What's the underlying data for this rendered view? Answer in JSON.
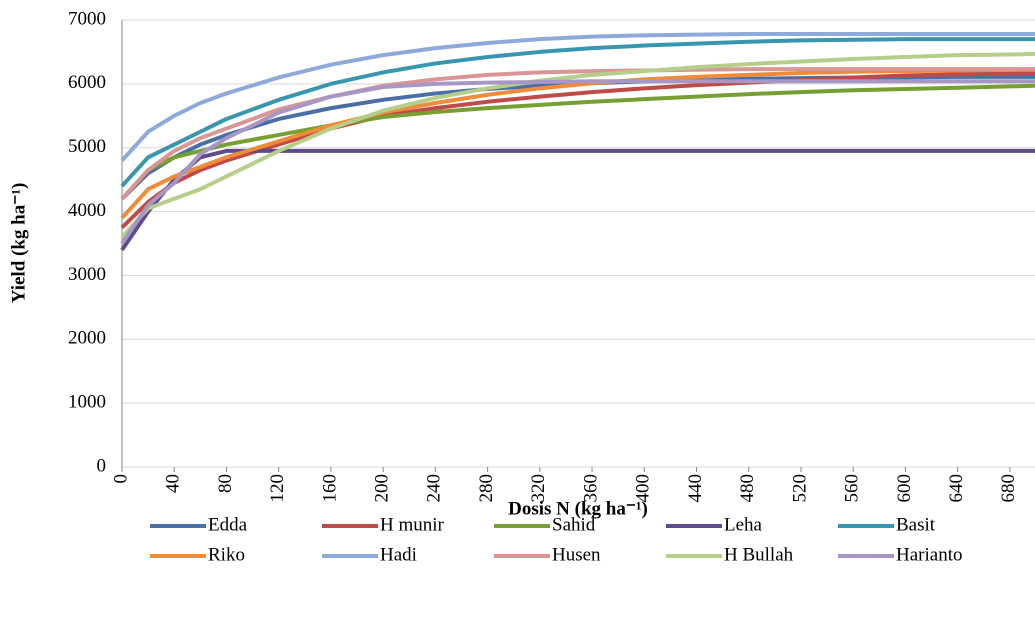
{
  "chart_data": {
    "type": "line",
    "y_label": "Yield (kg ha⁻¹)",
    "x_label": "Dosis N (kg ha⁻¹)",
    "x": [
      0,
      20,
      40,
      60,
      80,
      120,
      160,
      200,
      240,
      280,
      320,
      360,
      400,
      440,
      480,
      520,
      560,
      600,
      640,
      680,
      700
    ],
    "xlim": [
      0,
      700
    ],
    "xticks": [
      0,
      40,
      80,
      120,
      160,
      200,
      240,
      280,
      320,
      360,
      400,
      440,
      480,
      520,
      560,
      600,
      640,
      680
    ],
    "ylim": [
      0,
      7000
    ],
    "yticks": [
      0,
      1000,
      2000,
      3000,
      4000,
      5000,
      6000,
      7000
    ],
    "grid": true,
    "legend": "bottom",
    "series": [
      {
        "name": "Edda",
        "color": "#4a6fa5",
        "values": [
          4200,
          4600,
          4850,
          5050,
          5200,
          5450,
          5620,
          5750,
          5850,
          5920,
          5970,
          6010,
          6040,
          6060,
          6080,
          6090,
          6100,
          6100,
          6110,
          6110,
          6110
        ]
      },
      {
        "name": "H munir",
        "color": "#be4b48",
        "values": [
          3750,
          4150,
          4450,
          4650,
          4800,
          5050,
          5300,
          5500,
          5620,
          5720,
          5800,
          5870,
          5930,
          5980,
          6020,
          6060,
          6100,
          6130,
          6150,
          6160,
          6170
        ]
      },
      {
        "name": "Sahid",
        "color": "#77a033",
        "values": [
          4200,
          4650,
          4850,
          4950,
          5050,
          5200,
          5350,
          5480,
          5560,
          5620,
          5670,
          5720,
          5760,
          5800,
          5840,
          5870,
          5900,
          5920,
          5940,
          5960,
          5970
        ]
      },
      {
        "name": "Leha",
        "color": "#5f4b8b",
        "values": [
          3400,
          4000,
          4500,
          4850,
          4950,
          4950,
          4950,
          4950,
          4950,
          4950,
          4950,
          4950,
          4950,
          4950,
          4950,
          4950,
          4950,
          4950,
          4950,
          4950,
          4950
        ]
      },
      {
        "name": "Basit",
        "color": "#3896ae",
        "values": [
          4400,
          4850,
          5050,
          5250,
          5450,
          5750,
          6000,
          6180,
          6320,
          6420,
          6500,
          6560,
          6600,
          6630,
          6660,
          6680,
          6690,
          6700,
          6700,
          6700,
          6700
        ]
      },
      {
        "name": "Riko",
        "color": "#f08b3a",
        "values": [
          3900,
          4350,
          4550,
          4700,
          4850,
          5100,
          5350,
          5550,
          5700,
          5830,
          5930,
          6010,
          6070,
          6110,
          6140,
          6170,
          6190,
          6200,
          6210,
          6220,
          6220
        ]
      },
      {
        "name": "Hadi",
        "color": "#8eaadb",
        "values": [
          4800,
          5250,
          5500,
          5700,
          5850,
          6100,
          6300,
          6450,
          6560,
          6640,
          6700,
          6740,
          6760,
          6770,
          6780,
          6780,
          6780,
          6780,
          6780,
          6780,
          6780
        ]
      },
      {
        "name": "Husen",
        "color": "#d99694",
        "values": [
          4200,
          4650,
          4950,
          5150,
          5300,
          5600,
          5800,
          5970,
          6070,
          6140,
          6180,
          6200,
          6210,
          6220,
          6230,
          6230,
          6230,
          6230,
          6230,
          6230,
          6230
        ]
      },
      {
        "name": "H Bullah",
        "color": "#b5cf8a",
        "values": [
          3600,
          4050,
          4200,
          4350,
          4550,
          4950,
          5300,
          5580,
          5780,
          5930,
          6050,
          6140,
          6200,
          6260,
          6310,
          6350,
          6390,
          6420,
          6450,
          6460,
          6470
        ]
      },
      {
        "name": "Harianto",
        "color": "#a897c4",
        "values": [
          3500,
          4100,
          4450,
          4900,
          5150,
          5550,
          5800,
          5950,
          6000,
          6020,
          6030,
          6040,
          6040,
          6040,
          6040,
          6040,
          6040,
          6040,
          6040,
          6040,
          6040
        ]
      }
    ]
  }
}
